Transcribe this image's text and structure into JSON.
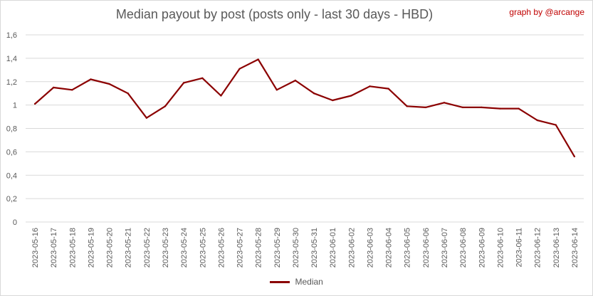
{
  "chart_data": {
    "type": "line",
    "title": "Median payout by post (posts only - last 30 days - HBD)",
    "credit": "graph by @arcange",
    "xlabel": "",
    "ylabel": "",
    "ylim": [
      0,
      1.6
    ],
    "yticks": [
      "0",
      "0,2",
      "0,4",
      "0,6",
      "0,8",
      "1",
      "1,2",
      "1,4",
      "1,6"
    ],
    "grid": true,
    "legend_position": "bottom",
    "categories": [
      "2023-05-16",
      "2023-05-17",
      "2023-05-18",
      "2023-05-19",
      "2023-05-20",
      "2023-05-21",
      "2023-05-22",
      "2023-05-23",
      "2023-05-24",
      "2023-05-25",
      "2023-05-26",
      "2023-05-27",
      "2023-05-28",
      "2023-05-29",
      "2023-05-30",
      "2023-05-31",
      "2023-06-01",
      "2023-06-02",
      "2023-06-03",
      "2023-06-04",
      "2023-06-05",
      "2023-06-06",
      "2023-06-07",
      "2023-06-08",
      "2023-06-09",
      "2023-06-10",
      "2023-06-11",
      "2023-06-12",
      "2023-06-13",
      "2023-06-14"
    ],
    "series": [
      {
        "name": "Median",
        "color": "#8b0000",
        "values": [
          1.01,
          1.15,
          1.13,
          1.22,
          1.18,
          1.1,
          0.89,
          0.99,
          1.19,
          1.23,
          1.08,
          1.31,
          1.39,
          1.13,
          1.21,
          1.1,
          1.04,
          1.08,
          1.16,
          1.14,
          0.99,
          0.98,
          1.02,
          0.98,
          0.98,
          0.97,
          0.97,
          0.87,
          0.83,
          0.56
        ]
      }
    ]
  }
}
